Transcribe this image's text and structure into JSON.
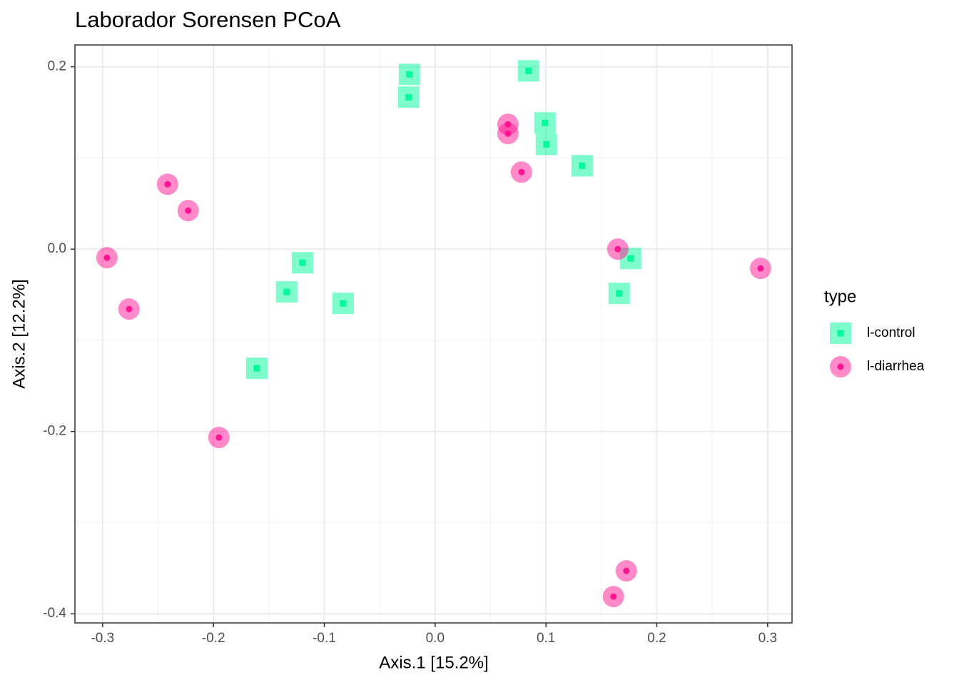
{
  "chart_data": {
    "type": "scatter",
    "title": "Laborador Sorensen PCoA",
    "x_label": "Axis.1   [15.2%]",
    "y_label": "Axis.2   [12.2%]",
    "xlim": [
      -0.325,
      0.322
    ],
    "ylim": [
      -0.41,
      0.224
    ],
    "xticks": [
      -0.3,
      -0.2,
      -0.1,
      {
        "value": 0,
        "label": "0.0"
      },
      0.1,
      0.2,
      0.3
    ],
    "yticks": [
      -0.4,
      -0.2,
      {
        "value": 0,
        "label": "0.0"
      },
      0.2
    ],
    "grid": true,
    "legend_title": "type",
    "legend_position": "right",
    "series": [
      {
        "name": "l-control",
        "color": "#00fa9a",
        "marker": "square",
        "x": [
          -0.0232,
          -0.0238,
          0.0843,
          0.0991,
          0.1004,
          0.1326,
          0.1764,
          0.1661,
          -0.1197,
          -0.1339,
          -0.083,
          -0.1609
        ],
        "values": [
          0.1917,
          0.1667,
          0.1956,
          0.1385,
          0.115,
          0.0915,
          -0.0102,
          -0.0485,
          -0.0149,
          -0.0469,
          -0.0595,
          -0.1307
        ]
      },
      {
        "name": "l-diarrhea",
        "color": "#ff1493",
        "marker": "circle",
        "x": [
          0.0657,
          0.0657,
          0.0779,
          0.1648,
          0.2936,
          0.1725,
          0.1609,
          -0.2414,
          -0.2228,
          -0.2961,
          -0.2762,
          -0.1951
        ],
        "values": [
          0.1369,
          0.1268,
          0.0845,
          0.0,
          -0.0211,
          -0.3529,
          -0.3811,
          0.0712,
          0.0423,
          -0.0094,
          -0.0657,
          -0.2066
        ]
      }
    ]
  }
}
